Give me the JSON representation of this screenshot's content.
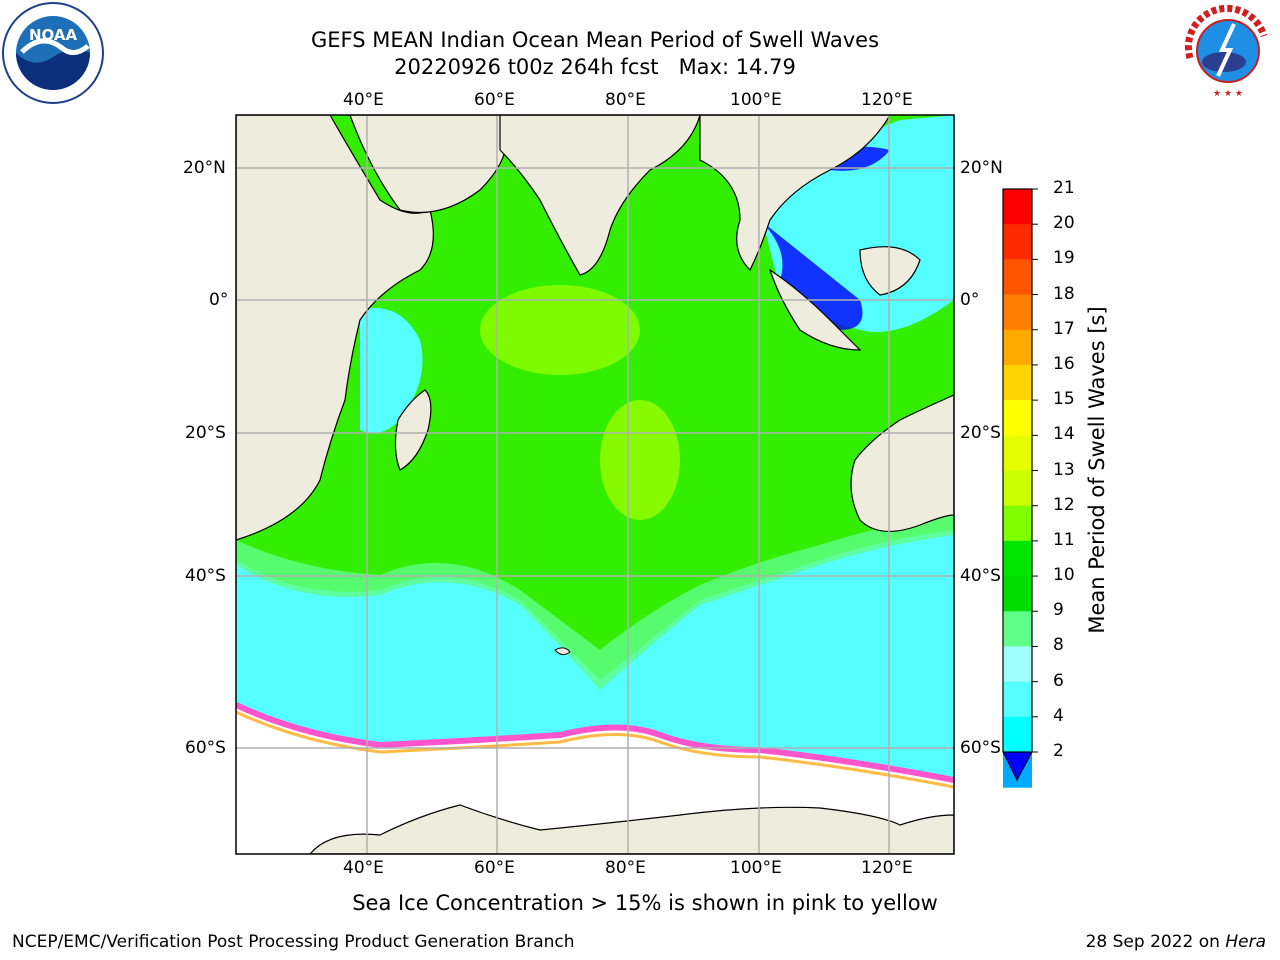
{
  "title": {
    "line1": "GEFS MEAN Indian Ocean Mean Period of Swell Waves",
    "line2": "20220926 t00z 264h fcst   Max: 14.79"
  },
  "axes": {
    "lon_ticks": [
      "40°E",
      "60°E",
      "80°E",
      "100°E",
      "120°E"
    ],
    "lat_ticks": [
      "20°N",
      "0°",
      "20°S",
      "40°S",
      "60°S"
    ]
  },
  "colorbar": {
    "title": "Mean Period of Swell Waves [s]",
    "labels": [
      "21",
      "20",
      "19",
      "18",
      "17",
      "16",
      "15",
      "14",
      "13",
      "12",
      "11",
      "10",
      "9",
      "8",
      "6",
      "4",
      "2"
    ],
    "colors": [
      "#ff0000",
      "#ff2a00",
      "#ff5500",
      "#ff8000",
      "#ffaa00",
      "#ffd400",
      "#ffff00",
      "#e6ff00",
      "#ccff00",
      "#80ff00",
      "#00e600",
      "#00dd00",
      "#5fff8a",
      "#a0ffff",
      "#55ffff",
      "#00ffff",
      "#00aaff"
    ],
    "under_color": "#0000ff"
  },
  "caption": "Sea Ice Concentration > 15% is shown in pink to yellow",
  "footer": {
    "left": "NCEP/EMC/Verification Post Processing Product Generation Branch",
    "right_date": "28 Sep 2022 on ",
    "right_host": "Hera"
  },
  "logos": {
    "noaa": "NOAA",
    "nws": "NATIONAL WEATHER SERVICE"
  },
  "colors": {
    "land": "#eeecdc",
    "ocean_green": "#33ee00",
    "ocean_cyan": "#55ffff",
    "ice": "#ff55cc"
  }
}
